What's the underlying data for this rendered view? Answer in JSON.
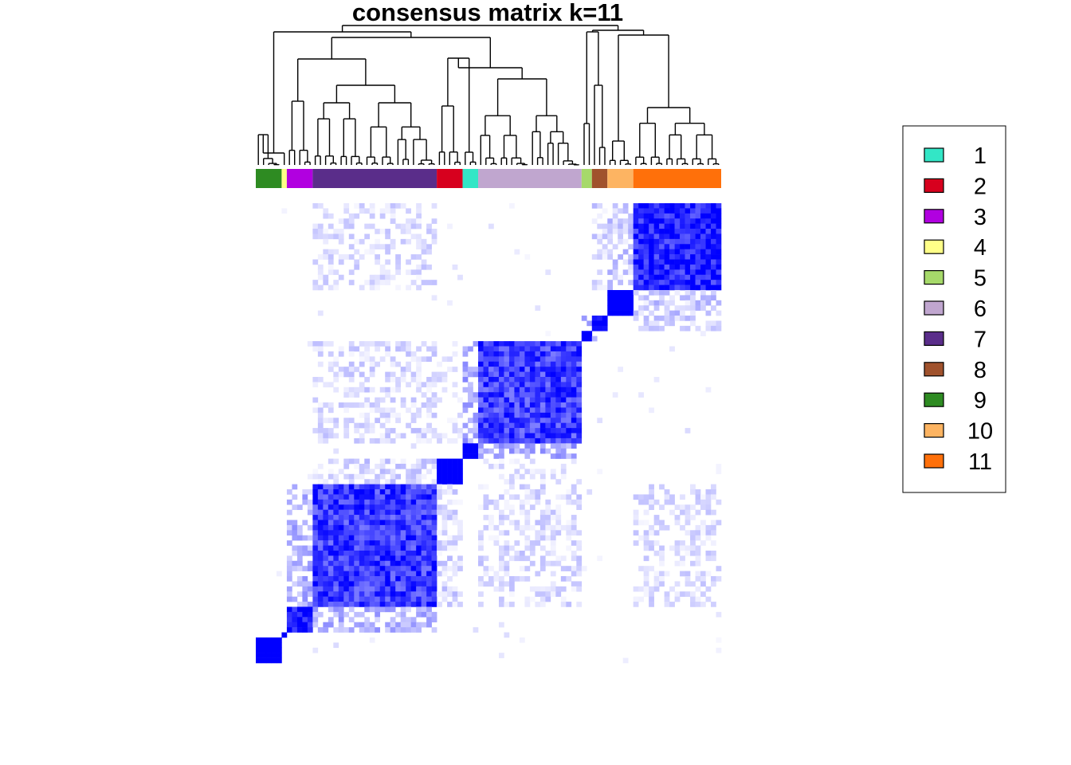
{
  "chart_data": {
    "type": "heatmap",
    "title": "consensus matrix k=11",
    "value_range": [
      0,
      1
    ],
    "color_low": "#ffffff",
    "color_high": "#0000ff",
    "grid": false,
    "legend_position": "right",
    "clusters": [
      {
        "id": "1",
        "label": "1",
        "color": "#33e6c6",
        "size": 3
      },
      {
        "id": "2",
        "label": "2",
        "color": "#d7001e",
        "size": 5
      },
      {
        "id": "3",
        "label": "3",
        "color": "#b100e0",
        "size": 5
      },
      {
        "id": "4",
        "label": "4",
        "color": "#ffff88",
        "size": 1
      },
      {
        "id": "5",
        "label": "5",
        "color": "#a6d96a",
        "size": 2
      },
      {
        "id": "6",
        "label": "6",
        "color": "#c0a6cf",
        "size": 20
      },
      {
        "id": "7",
        "label": "7",
        "color": "#5a2d8a",
        "size": 24
      },
      {
        "id": "8",
        "label": "8",
        "color": "#a0522d",
        "size": 3
      },
      {
        "id": "9",
        "label": "9",
        "color": "#2e8b22",
        "size": 5
      },
      {
        "id": "10",
        "label": "10",
        "color": "#fdb462",
        "size": 5
      },
      {
        "id": "11",
        "label": "11",
        "color": "#ff700a",
        "size": 17
      }
    ],
    "column_order": [
      "9",
      "4",
      "3",
      "7",
      "2",
      "1",
      "6",
      "5",
      "8",
      "10",
      "11"
    ],
    "row_order": [
      "11",
      "10",
      "8",
      "5",
      "6",
      "1",
      "2",
      "7",
      "3",
      "4",
      "9"
    ],
    "block_consensus": [
      {
        "a": "9",
        "b": "9",
        "value": 1.0
      },
      {
        "a": "4",
        "b": "4",
        "value": 1.0
      },
      {
        "a": "3",
        "b": "3",
        "value": 0.92
      },
      {
        "a": "7",
        "b": "7",
        "value": 0.72
      },
      {
        "a": "2",
        "b": "2",
        "value": 1.0
      },
      {
        "a": "1",
        "b": "1",
        "value": 1.0
      },
      {
        "a": "6",
        "b": "6",
        "value": 0.7
      },
      {
        "a": "5",
        "b": "5",
        "value": 1.0
      },
      {
        "a": "8",
        "b": "8",
        "value": 0.95
      },
      {
        "a": "10",
        "b": "10",
        "value": 1.0
      },
      {
        "a": "11",
        "b": "11",
        "value": 0.82
      },
      {
        "a": "3",
        "b": "7",
        "value": 0.3
      },
      {
        "a": "7",
        "b": "2",
        "value": 0.15
      },
      {
        "a": "2",
        "b": "6",
        "value": 0.05
      },
      {
        "a": "6",
        "b": "1",
        "value": 0.35
      },
      {
        "a": "7",
        "b": "6",
        "value": 0.12
      },
      {
        "a": "7",
        "b": "11",
        "value": 0.1
      },
      {
        "a": "5",
        "b": "8",
        "value": 0.3
      },
      {
        "a": "10",
        "b": "11",
        "value": 0.2
      },
      {
        "a": "8",
        "b": "11",
        "value": 0.15
      }
    ]
  }
}
